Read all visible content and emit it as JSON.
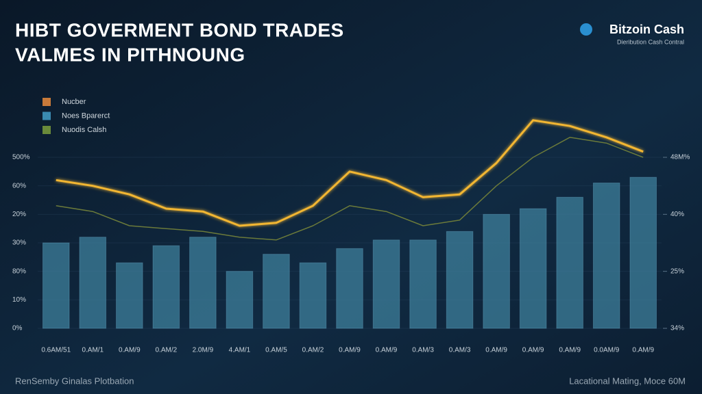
{
  "chart_data": {
    "type": "bar",
    "title": [
      "HIBT GOVERMENT BOND TRADES",
      "VALMES IN PITHNOUNG"
    ],
    "logo": "Bitzoin Cash",
    "logo_subtitle": "Dieribution Cash Contral",
    "footer_left": "RenSemby Ginalas Plotbation",
    "footer_right": "Lacational Mating, Moce 60M",
    "categories": [
      "0.6AM/51",
      "0.AM/1",
      "0.AM/9",
      "0.AM/2",
      "2.0M/9",
      "4.AM/1",
      "0.AM/5",
      "0.AM/2",
      "0.AM/9",
      "0.AM/9",
      "0.AM/3",
      "0.AM/3",
      "0.AM/9",
      "0.AM/9",
      "0.AM/9",
      "0.0AM/9",
      "0.AM/9"
    ],
    "series": [
      {
        "name": "Nucber",
        "type": "line",
        "color": "#f2b632",
        "legend_color": "#c87a3a",
        "values": [
          5.2,
          5.0,
          4.7,
          4.2,
          4.1,
          3.6,
          3.7,
          4.3,
          5.5,
          5.2,
          4.6,
          4.7,
          5.8,
          7.3,
          7.1,
          6.7,
          6.2
        ]
      },
      {
        "name": "Noes Bparerct",
        "type": "bar",
        "color": "#3d7f9b",
        "legend_color": "#3a8ab0",
        "values": [
          3.0,
          3.2,
          2.3,
          2.9,
          3.2,
          2.0,
          2.6,
          2.3,
          2.8,
          3.1,
          3.1,
          3.4,
          4.0,
          4.2,
          4.6,
          5.1,
          5.3
        ]
      },
      {
        "name": "Nuodis Calsh",
        "type": "line",
        "color": "#6b7a3a",
        "legend_color": "#6a8a3a",
        "values": [
          4.3,
          4.1,
          3.6,
          3.5,
          3.4,
          3.2,
          3.1,
          3.6,
          4.3,
          4.1,
          3.6,
          3.8,
          5.0,
          6.0,
          6.7,
          6.5,
          6.0
        ]
      }
    ],
    "ylim": [
      0,
      9
    ],
    "yticks": [
      {
        "value": 0,
        "label": "0%"
      },
      {
        "value": 1,
        "label": "10%"
      },
      {
        "value": 2,
        "label": "80%"
      },
      {
        "value": 3,
        "label": "30%"
      },
      {
        "value": 4,
        "label": "20%"
      },
      {
        "value": 5,
        "label": "60%"
      },
      {
        "value": 6,
        "label": "500%"
      }
    ],
    "y2lim": [
      0,
      4.5
    ],
    "y2ticks": [
      {
        "value": 0,
        "label": "34%"
      },
      {
        "value": 1,
        "label": "25%"
      },
      {
        "value": 2,
        "label": "40%"
      },
      {
        "value": 3,
        "label": "48M%"
      }
    ],
    "grid": true,
    "legend": "upper left"
  }
}
